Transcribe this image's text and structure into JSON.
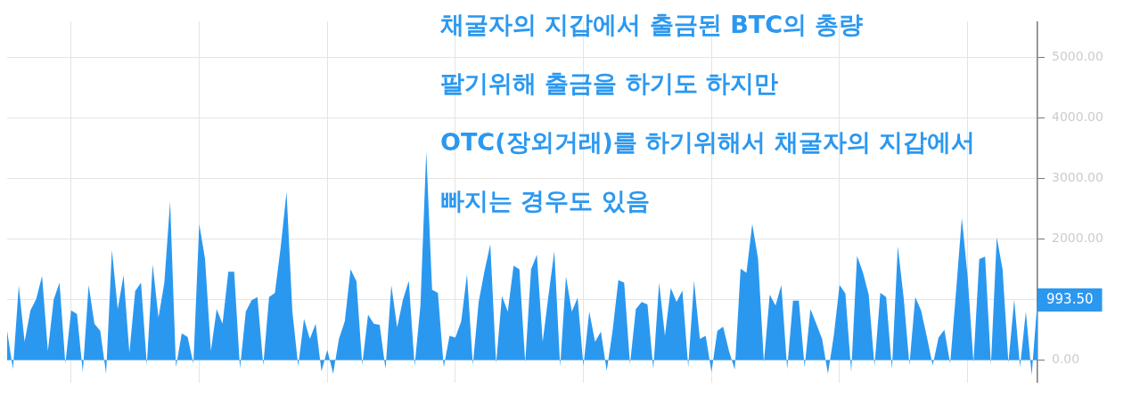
{
  "chart_data": {
    "type": "area",
    "color": "#2b98f0",
    "annotations": [
      "채굴자의 지갑에서 출금된 BTC의 총량",
      "팔기위해 출금을 하기도 하지만",
      "OTC(장외거래)를 하기위해서 채굴자의 지갑에서",
      "빠지는 경우도 있음",
      "993.50"
    ],
    "ylim": [
      -370,
      5590
    ],
    "yticks": [
      {
        "value": 0,
        "label": "0.00"
      },
      {
        "value": 1000,
        "label": null
      },
      {
        "value": 2000,
        "label": "2000.00"
      },
      {
        "value": 3000,
        "label": "3000.00"
      },
      {
        "value": 4000,
        "label": "4000.00"
      },
      {
        "value": 5000,
        "label": "5000.00"
      }
    ],
    "grid": true,
    "categories": [
      null,
      null,
      null,
      null,
      null,
      null,
      null,
      null,
      null,
      null,
      null,
      null,
      null,
      null,
      null,
      null,
      null,
      null,
      null,
      null,
      null,
      null,
      null,
      null,
      null,
      null,
      null,
      null,
      null,
      null,
      null,
      null,
      null,
      null,
      null,
      null,
      null,
      null,
      null,
      null,
      null,
      null,
      null,
      null,
      null,
      null,
      null,
      null,
      null,
      null,
      null,
      null,
      null,
      null,
      null,
      null,
      null,
      null,
      null,
      null,
      null,
      null,
      null,
      null,
      null,
      null,
      null,
      null,
      null,
      null,
      null,
      null,
      null,
      null,
      null,
      null,
      null,
      null,
      null,
      null,
      null,
      null,
      null,
      null,
      null,
      null,
      null,
      null,
      null,
      null,
      null,
      null,
      null,
      null,
      null,
      null,
      null,
      null,
      null,
      null,
      null,
      null,
      null,
      null,
      null,
      null,
      null,
      null,
      null,
      null,
      null,
      null,
      null,
      null,
      null,
      null,
      null,
      null,
      null,
      null,
      null,
      null,
      null,
      null,
      null,
      null,
      null,
      null,
      null,
      null,
      null,
      null,
      null,
      null,
      null,
      null,
      null,
      null,
      null,
      null,
      null,
      null,
      null,
      null,
      null,
      null,
      null,
      null,
      null,
      null,
      null,
      null,
      null,
      null,
      null,
      null,
      null,
      null,
      null,
      null,
      null,
      null,
      null,
      null,
      null,
      null,
      null,
      null,
      null,
      null,
      null,
      null,
      null,
      null,
      null,
      null,
      null,
      null
    ],
    "values": [
      480,
      -150,
      1230,
      300,
      820,
      1010,
      1390,
      150,
      1000,
      1280,
      -60,
      820,
      760,
      -200,
      1240,
      600,
      480,
      -230,
      1820,
      840,
      1400,
      120,
      1140,
      1280,
      -80,
      1580,
      700,
      1270,
      2620,
      -120,
      440,
      380,
      -60,
      2250,
      1670,
      150,
      840,
      600,
      1460,
      1460,
      -140,
      800,
      990,
      1040,
      -90,
      1040,
      1110,
      1870,
      2780,
      800,
      -100,
      680,
      350,
      600,
      -190,
      170,
      -230,
      350,
      640,
      1500,
      1300,
      -80,
      750,
      600,
      580,
      -150,
      1240,
      540,
      1000,
      1310,
      -100,
      900,
      3450,
      1160,
      1110,
      -120,
      400,
      370,
      640,
      1420,
      -80,
      960,
      1470,
      1910,
      -60,
      1060,
      800,
      1560,
      1500,
      -40,
      1500,
      1740,
      300,
      1070,
      1800,
      -110,
      1380,
      800,
      1030,
      -100,
      800,
      300,
      470,
      -180,
      480,
      1320,
      1280,
      -70,
      840,
      960,
      920,
      -150,
      1280,
      400,
      1190,
      960,
      1150,
      -120,
      1310,
      350,
      400,
      -200,
      480,
      550,
      150,
      -160,
      1510,
      1440,
      2250,
      1670,
      -40,
      1080,
      900,
      1240,
      -150,
      980,
      980,
      -120,
      840,
      600,
      350,
      -230,
      400,
      1240,
      1100,
      -200,
      1720,
      1450,
      1080,
      -100,
      1110,
      1040,
      -150,
      1880,
      1040,
      -80,
      1040,
      820,
      380,
      -90,
      370,
      500,
      -60,
      1120,
      2350,
      1380,
      -40,
      1670,
      1710,
      -80,
      2030,
      1500,
      -50,
      1000,
      -120,
      800,
      -250,
      993.5
    ]
  }
}
